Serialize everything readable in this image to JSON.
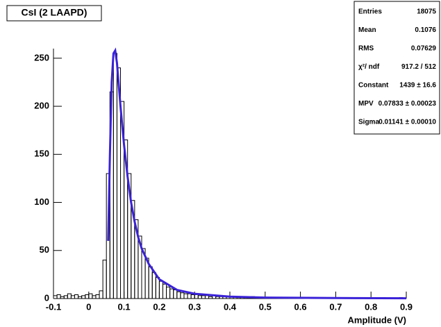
{
  "chart_data": {
    "type": "histogram",
    "title": "CsI (2 LAAPD)",
    "x_label": "Amplitude (V)",
    "bins": [
      -0.1,
      -0.09,
      -0.08,
      -0.07,
      -0.06,
      -0.05,
      -0.04,
      -0.03,
      -0.02,
      -0.01,
      0,
      0.01,
      0.02,
      0.03,
      0.04,
      0.05,
      0.06,
      0.07,
      0.08,
      0.09,
      0.1,
      0.11,
      0.12,
      0.13,
      0.14,
      0.15,
      0.16,
      0.17,
      0.18,
      0.19,
      0.2,
      0.21,
      0.22,
      0.23,
      0.24,
      0.25,
      0.26,
      0.27,
      0.28,
      0.29,
      0.3,
      0.31,
      0.32,
      0.33,
      0.34,
      0.35,
      0.36,
      0.37,
      0.38,
      0.39,
      0.4,
      0.41,
      0.42,
      0.43,
      0.44,
      0.45,
      0.46,
      0.47,
      0.48,
      0.49,
      0.5,
      0.51,
      0.52,
      0.53,
      0.54,
      0.55,
      0.56,
      0.57,
      0.58,
      0.59,
      0.6,
      0.61,
      0.62,
      0.63,
      0.64,
      0.65,
      0.66,
      0.67,
      0.68,
      0.69,
      0.7,
      0.71,
      0.72,
      0.73,
      0.74,
      0.75,
      0.76,
      0.77,
      0.78,
      0.79,
      0.8,
      0.81,
      0.82,
      0.83,
      0.84,
      0.85,
      0.86,
      0.87,
      0.88,
      0.89,
      0.9
    ],
    "values": [
      3,
      4,
      2,
      3,
      5,
      3,
      4,
      2,
      3,
      4,
      5,
      3,
      4,
      8,
      40,
      130,
      215,
      255,
      240,
      205,
      165,
      130,
      102,
      82,
      65,
      52,
      42,
      33,
      27,
      22,
      18,
      15,
      12,
      10,
      9,
      7,
      6,
      5,
      5,
      4,
      4,
      3,
      3,
      3,
      2,
      3,
      2,
      2,
      2,
      2,
      2,
      2,
      1,
      2,
      1,
      1,
      2,
      1,
      1,
      1,
      1,
      1,
      0,
      1,
      1,
      0,
      1,
      0,
      1,
      0,
      0,
      1,
      0,
      0,
      1,
      0,
      0,
      1,
      0,
      0,
      0,
      0,
      1,
      0,
      0,
      0,
      1,
      0,
      0,
      0,
      0,
      0,
      0,
      1,
      0,
      0,
      0,
      0,
      1,
      0
    ],
    "color": "#000000",
    "fit": {
      "color": "#3a22d8",
      "x": [
        0.055,
        0.06,
        0.065,
        0.07,
        0.075,
        0.08,
        0.085,
        0.09,
        0.1,
        0.11,
        0.12,
        0.13,
        0.14,
        0.15,
        0.17,
        0.2,
        0.25,
        0.3,
        0.4,
        0.5,
        0.7,
        0.9
      ],
      "y": [
        60,
        150,
        225,
        255,
        258,
        245,
        222,
        200,
        160,
        127,
        100,
        80,
        64,
        52,
        36,
        20,
        9,
        5,
        2,
        1,
        0.5,
        0.3
      ]
    },
    "stats": [
      {
        "label": "Entries",
        "value": "18075"
      },
      {
        "label": "Mean",
        "value": "0.1076"
      },
      {
        "label": "RMS",
        "value": "0.07629"
      },
      {
        "label": "χ²/ ndf",
        "value": "917.2 / 512"
      },
      {
        "label": "Constant",
        "value": "1439 ± 16.6"
      },
      {
        "label": "MPV",
        "value": "0.07833 ± 0.00023"
      },
      {
        "label": "Sigma",
        "value": "0.01141 ± 0.00010"
      }
    ],
    "xlim": [
      -0.1,
      0.9
    ],
    "ylim": [
      0,
      260
    ],
    "xticks": [
      -0.1,
      0,
      0.1,
      0.2,
      0.3,
      0.4,
      0.5,
      0.6,
      0.7,
      0.8,
      0.9
    ],
    "yticks": [
      0,
      50,
      100,
      150,
      200,
      250
    ]
  }
}
